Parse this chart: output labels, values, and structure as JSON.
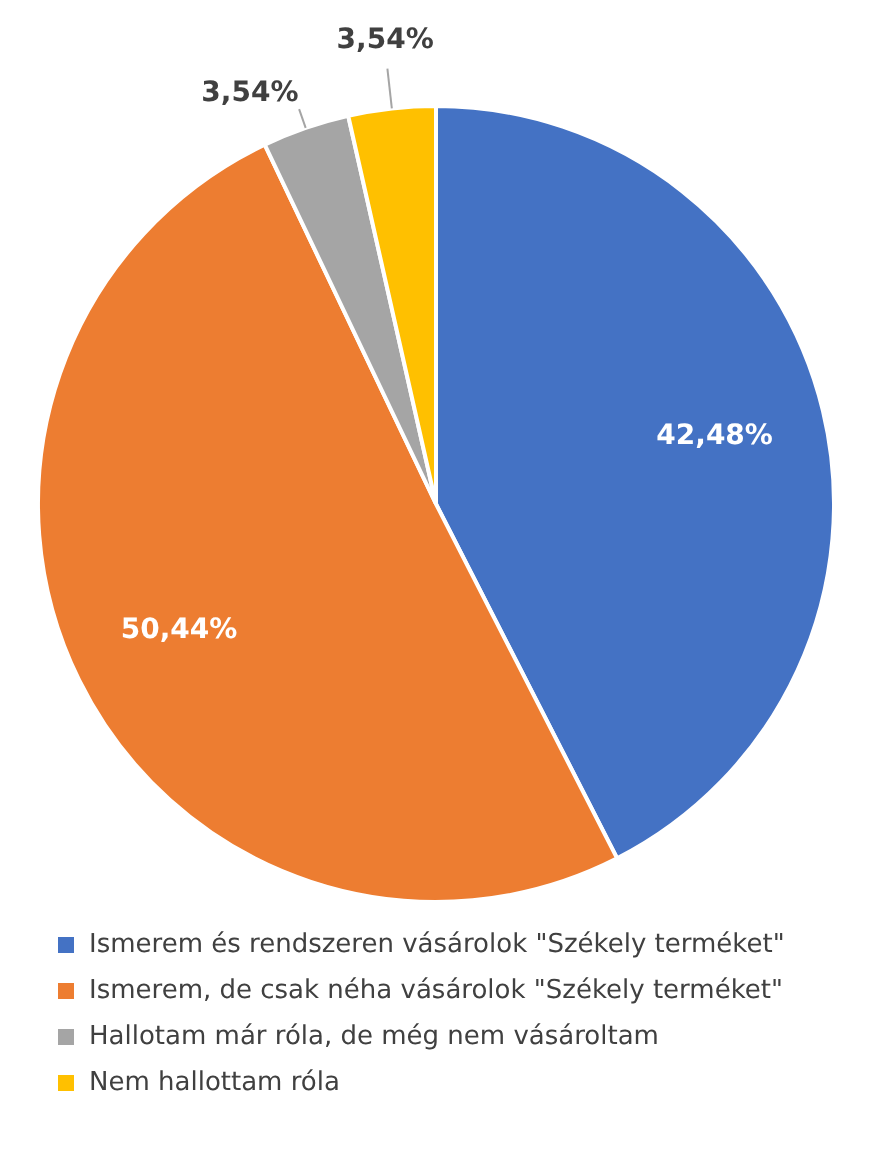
{
  "chart_data": {
    "type": "pie",
    "categories": [
      "Ismerem és rendszeren vásárolok \"Székely terméket\"",
      "Ismerem, de csak néha vásárolok \"Székely terméket\"",
      "Hallotam már róla, de még nem vásároltam",
      "Nem hallottam róla"
    ],
    "values": [
      42.48,
      50.44,
      3.54,
      3.54
    ],
    "value_labels": [
      "42,48%",
      "50,44%",
      "3,54%",
      "3,54%"
    ],
    "colors": [
      "#4472c4",
      "#ed7d31",
      "#a5a5a5",
      "#ffc000"
    ],
    "legend": "bottom"
  }
}
